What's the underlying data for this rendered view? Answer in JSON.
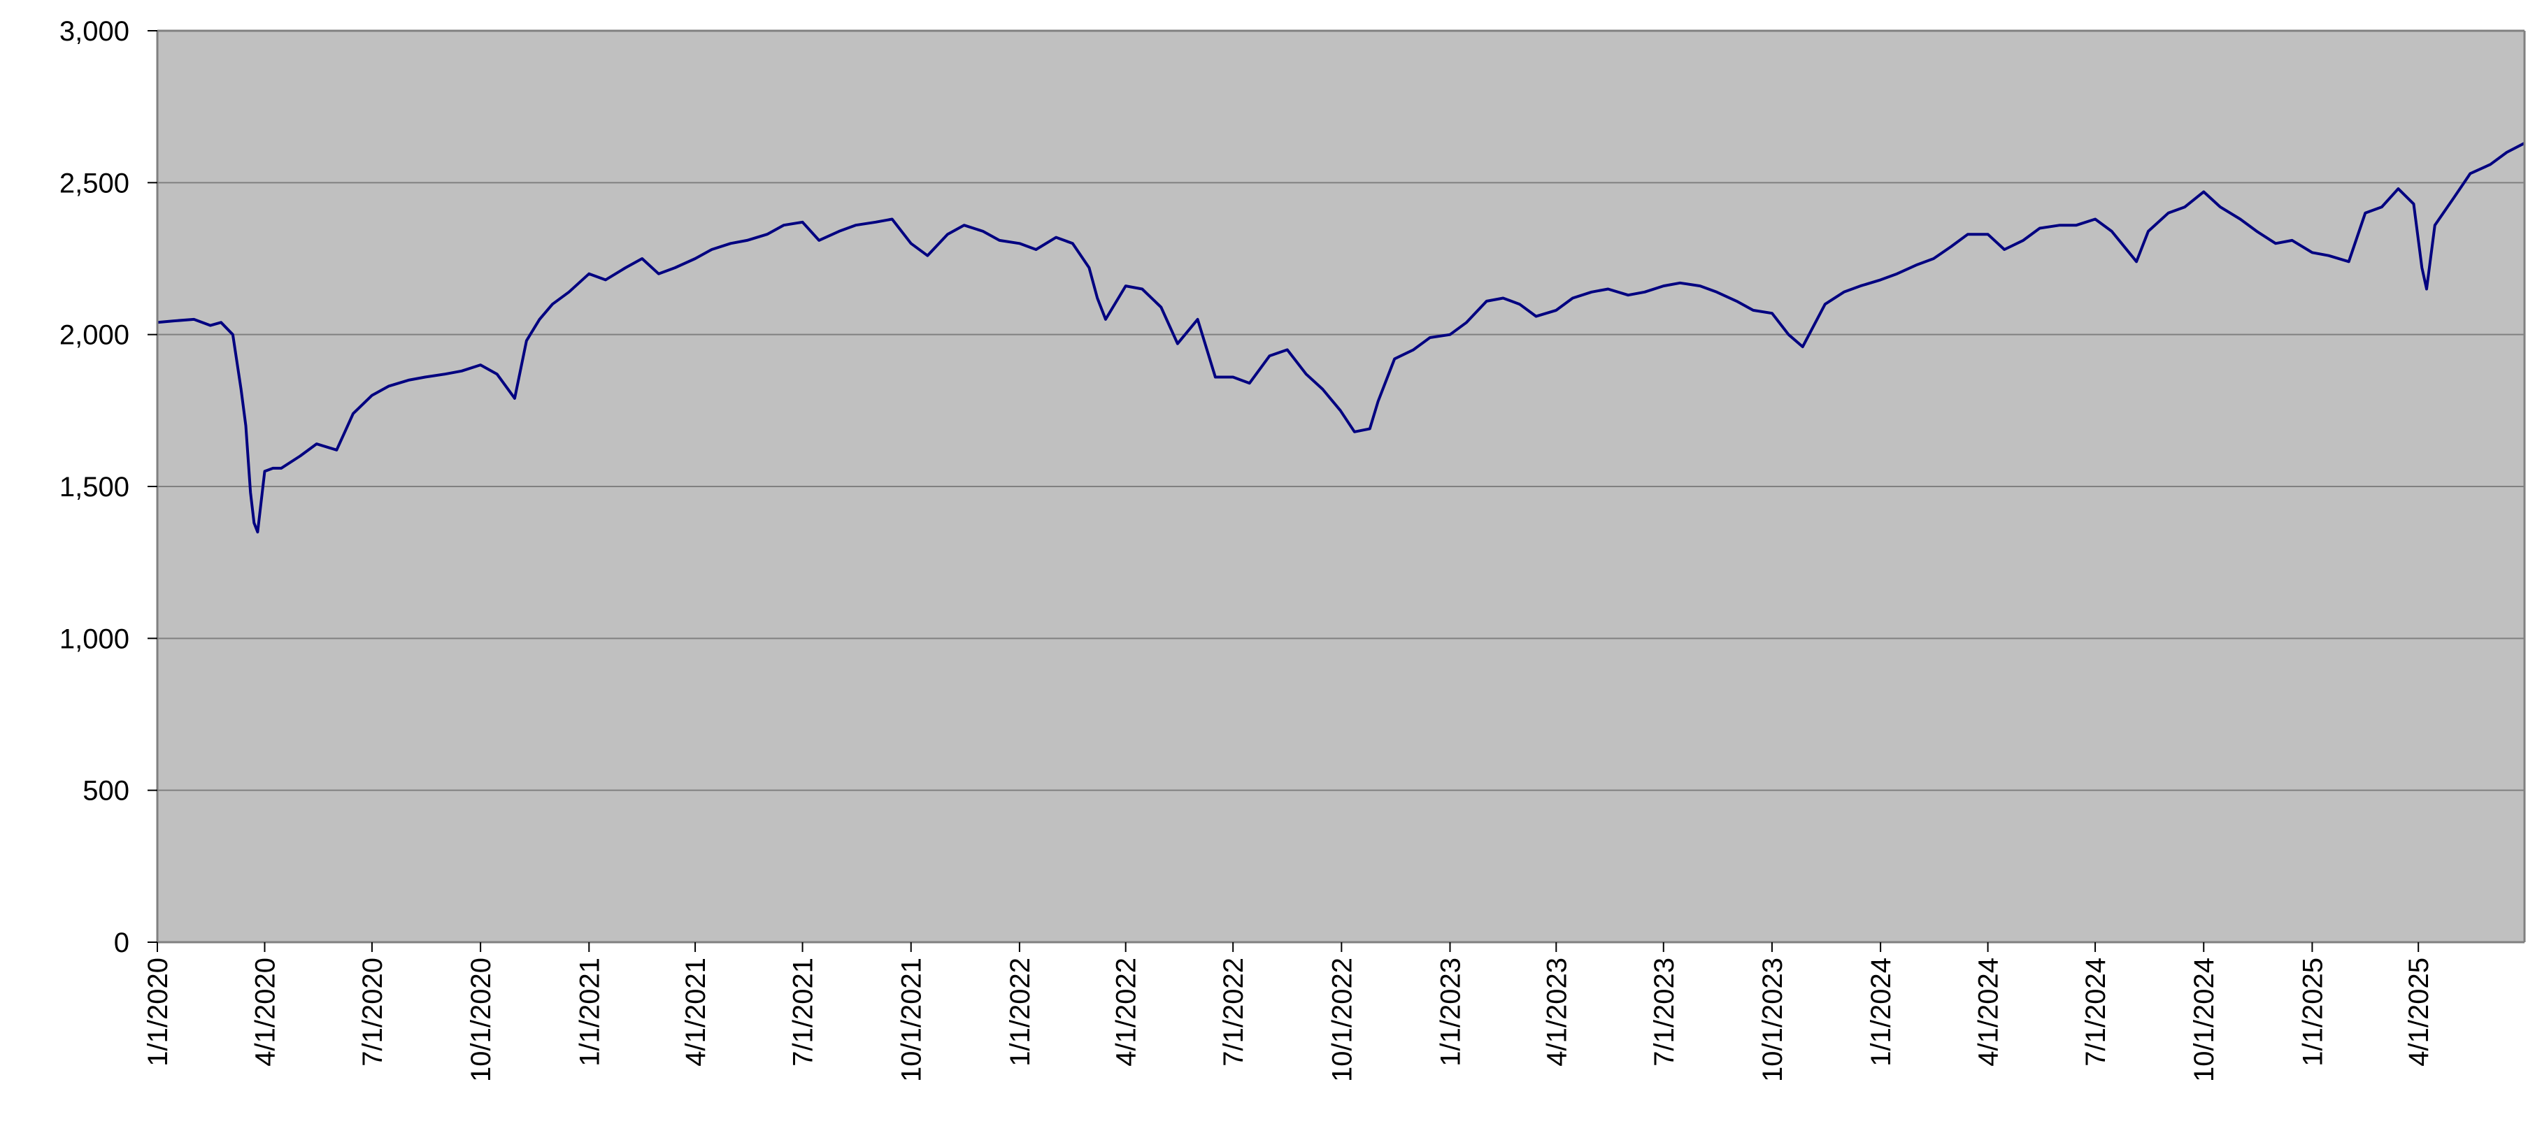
{
  "chart_data": {
    "type": "line",
    "title": "",
    "xlabel": "",
    "ylabel": "",
    "ylim": [
      0,
      3000
    ],
    "y_ticks": [
      0,
      500,
      1000,
      1500,
      2000,
      2500,
      3000
    ],
    "y_tick_labels": [
      "0",
      "500",
      "1,000",
      "1,500",
      "2,000",
      "2,500",
      "3,000"
    ],
    "x_range": [
      "2020-01-01",
      "2025-06-30"
    ],
    "x_tick_labels": [
      "1/1/2020",
      "4/1/2020",
      "7/1/2020",
      "10/1/2020",
      "1/1/2021",
      "4/1/2021",
      "7/1/2021",
      "10/1/2021",
      "1/1/2022",
      "4/1/2022",
      "7/1/2022",
      "10/1/2022",
      "1/1/2023",
      "4/1/2023",
      "7/1/2023",
      "10/1/2023",
      "1/1/2024",
      "4/1/2024",
      "7/1/2024",
      "10/1/2024",
      "1/1/2025",
      "4/1/2025"
    ],
    "grid": true,
    "legend": "none",
    "colors": {
      "plot_background": "#c0c0c0",
      "line": "#000080",
      "gridline": "#808080"
    },
    "series": [
      {
        "x": [
          "2020-01-01",
          "2020-01-15",
          "2020-02-01",
          "2020-02-15",
          "2020-02-24",
          "2020-03-05",
          "2020-03-12",
          "2020-03-16",
          "2020-03-20",
          "2020-03-23",
          "2020-03-26",
          "2020-04-01",
          "2020-04-08",
          "2020-04-15",
          "2020-05-01",
          "2020-05-15",
          "2020-06-01",
          "2020-06-08",
          "2020-06-15",
          "2020-07-01",
          "2020-07-15",
          "2020-08-01",
          "2020-08-15",
          "2020-09-01",
          "2020-09-15",
          "2020-10-01",
          "2020-10-15",
          "2020-10-30",
          "2020-11-09",
          "2020-11-20",
          "2020-12-01",
          "2020-12-15",
          "2021-01-01",
          "2021-01-15",
          "2021-02-01",
          "2021-02-15",
          "2021-03-01",
          "2021-03-15",
          "2021-04-01",
          "2021-04-15",
          "2021-05-01",
          "2021-05-15",
          "2021-06-01",
          "2021-06-15",
          "2021-07-01",
          "2021-07-15",
          "2021-08-01",
          "2021-08-15",
          "2021-09-01",
          "2021-09-15",
          "2021-10-01",
          "2021-10-15",
          "2021-11-01",
          "2021-11-15",
          "2021-12-01",
          "2021-12-15",
          "2022-01-01",
          "2022-01-15",
          "2022-02-01",
          "2022-02-15",
          "2022-03-01",
          "2022-03-08",
          "2022-03-15",
          "2022-04-01",
          "2022-04-15",
          "2022-05-01",
          "2022-05-15",
          "2022-06-01",
          "2022-06-16",
          "2022-07-01",
          "2022-07-15",
          "2022-08-01",
          "2022-08-16",
          "2022-09-01",
          "2022-09-15",
          "2022-09-30",
          "2022-10-12",
          "2022-10-25",
          "2022-11-01",
          "2022-11-15",
          "2022-12-01",
          "2022-12-15",
          "2023-01-01",
          "2023-01-15",
          "2023-02-01",
          "2023-02-15",
          "2023-03-01",
          "2023-03-15",
          "2023-04-01",
          "2023-04-15",
          "2023-05-01",
          "2023-05-15",
          "2023-06-01",
          "2023-06-15",
          "2023-07-01",
          "2023-07-15",
          "2023-08-01",
          "2023-08-15",
          "2023-09-01",
          "2023-09-15",
          "2023-10-01",
          "2023-10-15",
          "2023-10-27",
          "2023-11-15",
          "2023-12-01",
          "2023-12-15",
          "2024-01-01",
          "2024-01-15",
          "2024-02-01",
          "2024-02-15",
          "2024-03-01",
          "2024-03-15",
          "2024-04-01",
          "2024-04-15",
          "2024-05-01",
          "2024-05-15",
          "2024-06-01",
          "2024-06-15",
          "2024-07-01",
          "2024-07-15",
          "2024-08-05",
          "2024-08-15",
          "2024-09-01",
          "2024-09-15",
          "2024-10-01",
          "2024-10-15",
          "2024-11-01",
          "2024-11-15",
          "2024-12-01",
          "2024-12-15",
          "2025-01-01",
          "2025-01-15",
          "2025-02-01",
          "2025-02-15",
          "2025-03-01",
          "2025-03-15",
          "2025-03-28",
          "2025-04-04",
          "2025-04-08",
          "2025-04-15",
          "2025-05-01",
          "2025-05-15",
          "2025-06-01",
          "2025-06-15",
          "2025-06-30"
        ],
        "y": [
          2040,
          2045,
          2050,
          2030,
          2040,
          2000,
          1820,
          1700,
          1480,
          1380,
          1350,
          1550,
          1560,
          1560,
          1600,
          1640,
          1620,
          1680,
          1740,
          1800,
          1830,
          1850,
          1860,
          1870,
          1880,
          1900,
          1870,
          1790,
          1980,
          2050,
          2100,
          2140,
          2200,
          2180,
          2220,
          2250,
          2200,
          2220,
          2250,
          2280,
          2300,
          2310,
          2330,
          2360,
          2370,
          2310,
          2340,
          2360,
          2370,
          2380,
          2300,
          2260,
          2330,
          2360,
          2340,
          2310,
          2300,
          2280,
          2320,
          2300,
          2220,
          2120,
          2050,
          2160,
          2150,
          2090,
          1970,
          2050,
          1860,
          1860,
          1840,
          1930,
          1950,
          1870,
          1820,
          1750,
          1680,
          1690,
          1780,
          1920,
          1950,
          1990,
          2000,
          2040,
          2110,
          2120,
          2100,
          2060,
          2080,
          2120,
          2140,
          2150,
          2130,
          2140,
          2160,
          2170,
          2160,
          2140,
          2110,
          2080,
          2070,
          2000,
          1960,
          2100,
          2140,
          2160,
          2180,
          2200,
          2230,
          2250,
          2290,
          2330,
          2330,
          2280,
          2310,
          2350,
          2360,
          2360,
          2380,
          2340,
          2240,
          2340,
          2400,
          2420,
          2470,
          2420,
          2380,
          2340,
          2300,
          2310,
          2270,
          2260,
          2240,
          2400,
          2420,
          2480,
          2430,
          2220,
          2150,
          2360,
          2450,
          2530,
          2560,
          2600,
          2630
        ]
      }
    ]
  }
}
